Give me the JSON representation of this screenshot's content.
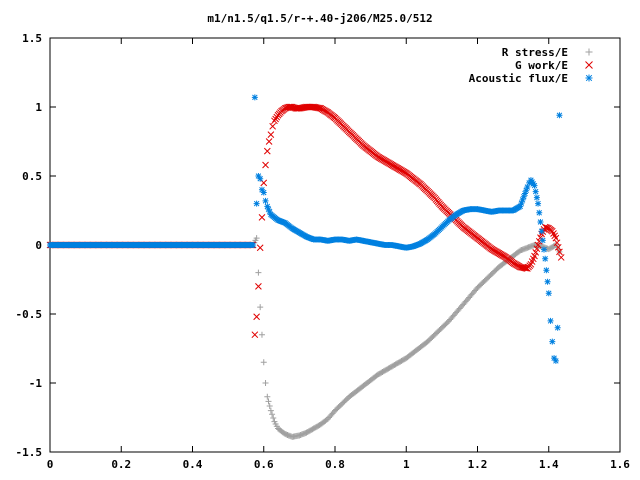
{
  "chart_data": {
    "type": "scatter",
    "title": "m1/n1.5/q1.5/r-+.40-j206/M25.0/512",
    "xlabel": "",
    "ylabel": "",
    "xlim": [
      0,
      1.6
    ],
    "ylim": [
      -1.5,
      1.5
    ],
    "xticks": [
      "0",
      "0.2",
      "0.4",
      "0.6",
      "0.8",
      "1",
      "1.2",
      "1.4",
      "1.6"
    ],
    "yticks": [
      "1.5",
      "1",
      "0.5",
      "0",
      "-0.5",
      "-1",
      "-1.5"
    ],
    "grid": false,
    "legend_position": "top-right",
    "series": [
      {
        "name": "R stress/E",
        "marker": "plus",
        "color": "#a0a0a0",
        "points": [
          [
            0.0,
            0.0
          ],
          [
            0.1,
            0.0
          ],
          [
            0.2,
            0.0
          ],
          [
            0.3,
            0.0
          ],
          [
            0.4,
            0.0
          ],
          [
            0.5,
            0.0
          ],
          [
            0.57,
            0.0
          ],
          [
            0.58,
            0.05
          ],
          [
            0.585,
            -0.2
          ],
          [
            0.59,
            -0.45
          ],
          [
            0.595,
            -0.65
          ],
          [
            0.6,
            -0.85
          ],
          [
            0.605,
            -1.0
          ],
          [
            0.61,
            -1.1
          ],
          [
            0.62,
            -1.2
          ],
          [
            0.63,
            -1.28
          ],
          [
            0.64,
            -1.33
          ],
          [
            0.66,
            -1.37
          ],
          [
            0.68,
            -1.39
          ],
          [
            0.7,
            -1.38
          ],
          [
            0.72,
            -1.36
          ],
          [
            0.74,
            -1.33
          ],
          [
            0.76,
            -1.3
          ],
          [
            0.78,
            -1.26
          ],
          [
            0.8,
            -1.2
          ],
          [
            0.82,
            -1.15
          ],
          [
            0.84,
            -1.1
          ],
          [
            0.86,
            -1.06
          ],
          [
            0.88,
            -1.02
          ],
          [
            0.9,
            -0.98
          ],
          [
            0.92,
            -0.94
          ],
          [
            0.94,
            -0.91
          ],
          [
            0.96,
            -0.88
          ],
          [
            0.98,
            -0.85
          ],
          [
            1.0,
            -0.82
          ],
          [
            1.02,
            -0.78
          ],
          [
            1.04,
            -0.74
          ],
          [
            1.06,
            -0.7
          ],
          [
            1.08,
            -0.65
          ],
          [
            1.1,
            -0.6
          ],
          [
            1.12,
            -0.55
          ],
          [
            1.14,
            -0.49
          ],
          [
            1.16,
            -0.43
          ],
          [
            1.18,
            -0.37
          ],
          [
            1.2,
            -0.31
          ],
          [
            1.22,
            -0.26
          ],
          [
            1.24,
            -0.21
          ],
          [
            1.26,
            -0.16
          ],
          [
            1.28,
            -0.12
          ],
          [
            1.3,
            -0.08
          ],
          [
            1.32,
            -0.04
          ],
          [
            1.34,
            -0.02
          ],
          [
            1.36,
            0.0
          ],
          [
            1.38,
            -0.01
          ],
          [
            1.4,
            -0.03
          ],
          [
            1.42,
            0.0
          ],
          [
            1.43,
            -0.05
          ]
        ]
      },
      {
        "name": "G work/E",
        "marker": "cross",
        "color": "#e00000",
        "points": [
          [
            0.0,
            0.0
          ],
          [
            0.1,
            0.0
          ],
          [
            0.2,
            0.0
          ],
          [
            0.3,
            0.0
          ],
          [
            0.4,
            0.0
          ],
          [
            0.5,
            0.0
          ],
          [
            0.57,
            0.0
          ],
          [
            0.575,
            -0.65
          ],
          [
            0.58,
            -0.52
          ],
          [
            0.585,
            -0.3
          ],
          [
            0.59,
            -0.02
          ],
          [
            0.595,
            0.2
          ],
          [
            0.6,
            0.45
          ],
          [
            0.605,
            0.58
          ],
          [
            0.61,
            0.68
          ],
          [
            0.615,
            0.75
          ],
          [
            0.62,
            0.8
          ],
          [
            0.625,
            0.86
          ],
          [
            0.63,
            0.9
          ],
          [
            0.64,
            0.94
          ],
          [
            0.65,
            0.97
          ],
          [
            0.66,
            0.99
          ],
          [
            0.67,
            1.0
          ],
          [
            0.68,
            1.0
          ],
          [
            0.69,
            0.99
          ],
          [
            0.7,
            0.99
          ],
          [
            0.72,
            1.0
          ],
          [
            0.74,
            1.0
          ],
          [
            0.76,
            0.99
          ],
          [
            0.78,
            0.96
          ],
          [
            0.8,
            0.92
          ],
          [
            0.82,
            0.87
          ],
          [
            0.84,
            0.82
          ],
          [
            0.86,
            0.77
          ],
          [
            0.88,
            0.72
          ],
          [
            0.9,
            0.68
          ],
          [
            0.92,
            0.64
          ],
          [
            0.94,
            0.61
          ],
          [
            0.96,
            0.58
          ],
          [
            0.98,
            0.55
          ],
          [
            1.0,
            0.52
          ],
          [
            1.02,
            0.48
          ],
          [
            1.04,
            0.44
          ],
          [
            1.06,
            0.39
          ],
          [
            1.08,
            0.34
          ],
          [
            1.1,
            0.28
          ],
          [
            1.12,
            0.23
          ],
          [
            1.14,
            0.18
          ],
          [
            1.16,
            0.13
          ],
          [
            1.18,
            0.09
          ],
          [
            1.2,
            0.05
          ],
          [
            1.22,
            0.01
          ],
          [
            1.24,
            -0.03
          ],
          [
            1.26,
            -0.06
          ],
          [
            1.28,
            -0.09
          ],
          [
            1.3,
            -0.13
          ],
          [
            1.32,
            -0.16
          ],
          [
            1.34,
            -0.17
          ],
          [
            1.35,
            -0.14
          ],
          [
            1.36,
            -0.08
          ],
          [
            1.37,
            0.0
          ],
          [
            1.38,
            0.08
          ],
          [
            1.39,
            0.13
          ],
          [
            1.4,
            0.12
          ],
          [
            1.41,
            0.1
          ],
          [
            1.42,
            0.05
          ],
          [
            1.43,
            -0.05
          ],
          [
            1.435,
            -0.09
          ]
        ]
      },
      {
        "name": "Acoustic flux/E",
        "marker": "star",
        "color": "#0080e0",
        "points": [
          [
            0.0,
            0.0
          ],
          [
            0.1,
            0.0
          ],
          [
            0.2,
            0.0
          ],
          [
            0.3,
            0.0
          ],
          [
            0.4,
            0.0
          ],
          [
            0.5,
            0.0
          ],
          [
            0.57,
            0.0
          ],
          [
            0.575,
            1.07
          ],
          [
            0.58,
            0.3
          ],
          [
            0.585,
            0.5
          ],
          [
            0.59,
            0.48
          ],
          [
            0.595,
            0.4
          ],
          [
            0.6,
            0.38
          ],
          [
            0.605,
            0.32
          ],
          [
            0.61,
            0.28
          ],
          [
            0.62,
            0.22
          ],
          [
            0.63,
            0.2
          ],
          [
            0.64,
            0.18
          ],
          [
            0.66,
            0.16
          ],
          [
            0.68,
            0.12
          ],
          [
            0.7,
            0.09
          ],
          [
            0.72,
            0.06
          ],
          [
            0.74,
            0.04
          ],
          [
            0.76,
            0.04
          ],
          [
            0.78,
            0.03
          ],
          [
            0.8,
            0.04
          ],
          [
            0.82,
            0.04
          ],
          [
            0.84,
            0.03
          ],
          [
            0.86,
            0.04
          ],
          [
            0.88,
            0.03
          ],
          [
            0.9,
            0.02
          ],
          [
            0.92,
            0.01
          ],
          [
            0.94,
            0.0
          ],
          [
            0.96,
            0.0
          ],
          [
            0.98,
            -0.01
          ],
          [
            1.0,
            -0.02
          ],
          [
            1.02,
            -0.01
          ],
          [
            1.04,
            0.01
          ],
          [
            1.06,
            0.04
          ],
          [
            1.08,
            0.08
          ],
          [
            1.1,
            0.13
          ],
          [
            1.12,
            0.18
          ],
          [
            1.14,
            0.22
          ],
          [
            1.16,
            0.25
          ],
          [
            1.18,
            0.26
          ],
          [
            1.2,
            0.26
          ],
          [
            1.22,
            0.25
          ],
          [
            1.24,
            0.24
          ],
          [
            1.26,
            0.25
          ],
          [
            1.28,
            0.25
          ],
          [
            1.3,
            0.25
          ],
          [
            1.32,
            0.28
          ],
          [
            1.33,
            0.35
          ],
          [
            1.34,
            0.42
          ],
          [
            1.345,
            0.45
          ],
          [
            1.35,
            0.47
          ],
          [
            1.36,
            0.43
          ],
          [
            1.37,
            0.3
          ],
          [
            1.38,
            0.1
          ],
          [
            1.39,
            -0.1
          ],
          [
            1.4,
            -0.35
          ],
          [
            1.405,
            -0.55
          ],
          [
            1.41,
            -0.7
          ],
          [
            1.415,
            -0.82
          ],
          [
            1.42,
            -0.84
          ],
          [
            1.425,
            -0.6
          ],
          [
            1.43,
            0.94
          ]
        ]
      }
    ]
  }
}
